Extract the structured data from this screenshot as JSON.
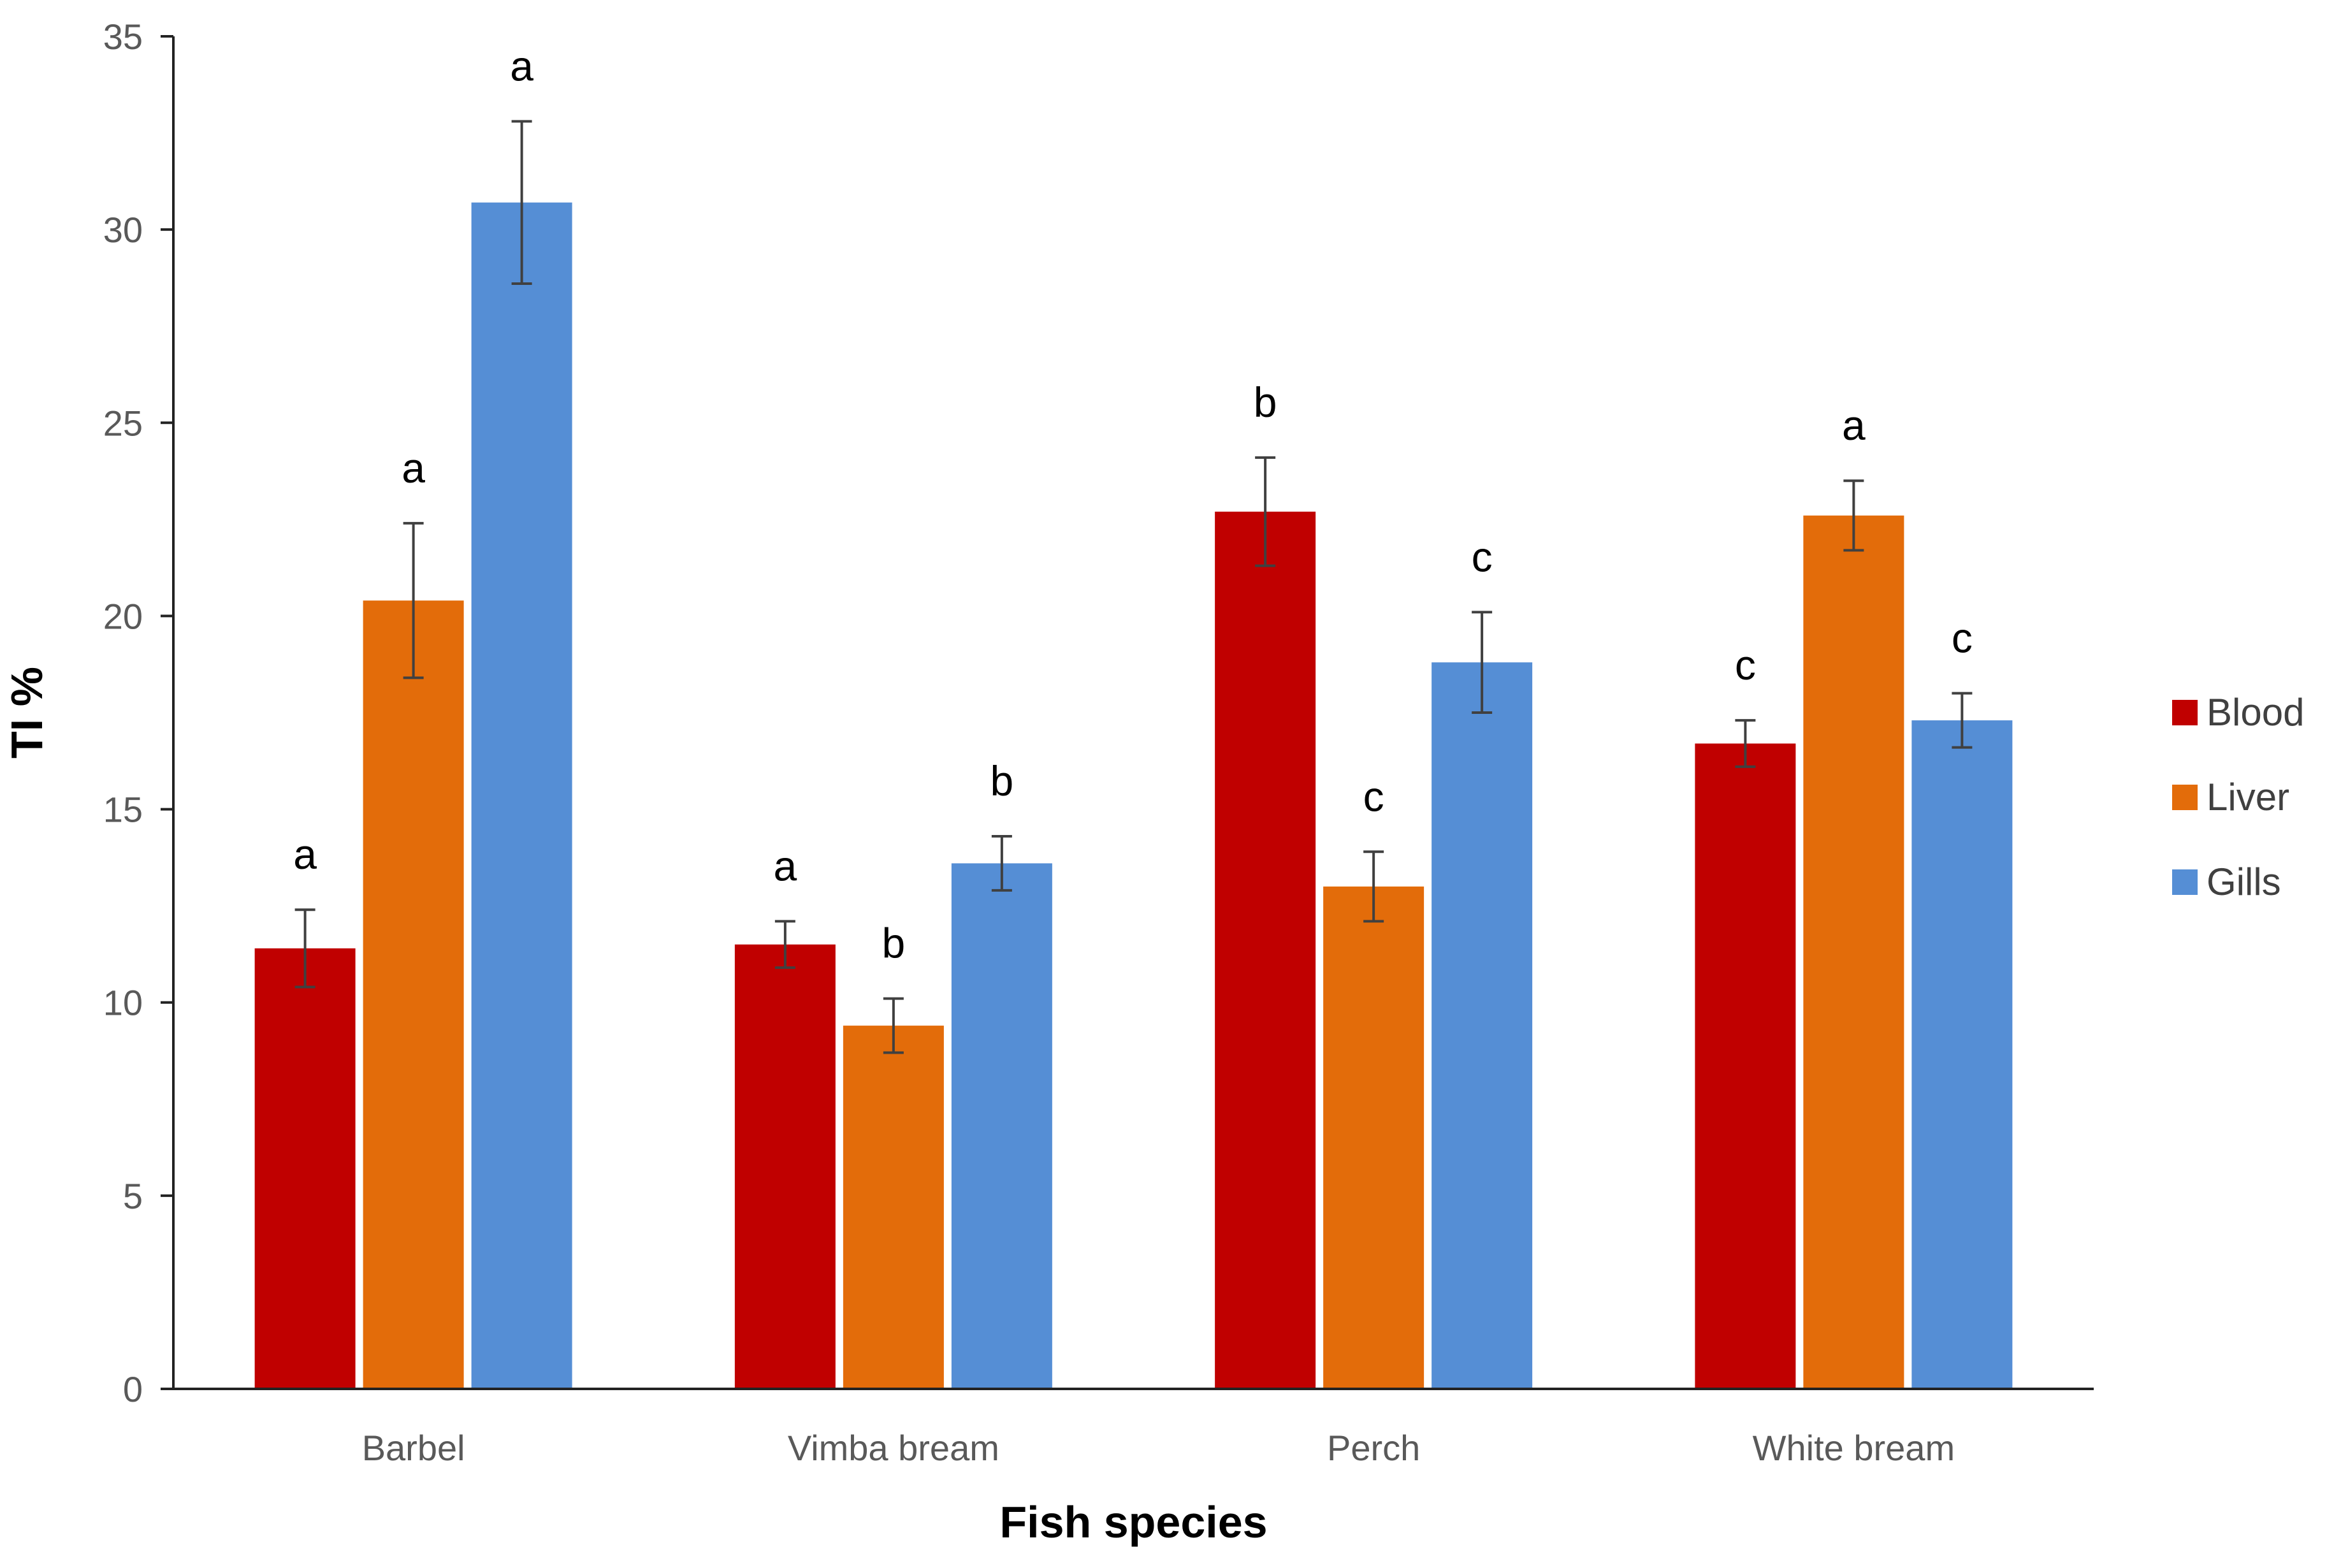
{
  "chart_data": {
    "type": "bar",
    "title": "",
    "xlabel": "Fish species",
    "ylabel": "TI %",
    "ylim": [
      0,
      35
    ],
    "yticks": [
      "0",
      "5",
      "10",
      "15",
      "20",
      "25",
      "30",
      "35"
    ],
    "grid": false,
    "legend_position": "right",
    "categories": [
      "Barbel",
      "Vimba bream",
      "Perch",
      "White bream"
    ],
    "series": [
      {
        "name": "Blood",
        "color": "#C00000",
        "values": [
          11.4,
          11.5,
          22.7,
          16.7
        ],
        "errors": [
          1.0,
          0.6,
          1.4,
          0.6
        ],
        "labels": [
          "a",
          "a",
          "b",
          "c"
        ]
      },
      {
        "name": "Liver",
        "color": "#E36C0A",
        "values": [
          20.4,
          9.4,
          13.0,
          22.6
        ],
        "errors": [
          2.0,
          0.7,
          0.9,
          0.9
        ],
        "labels": [
          "a",
          "b",
          "c",
          "a"
        ]
      },
      {
        "name": "Gills",
        "color": "#558ED5",
        "values": [
          30.7,
          13.6,
          18.8,
          17.3
        ],
        "errors": [
          2.1,
          0.7,
          1.3,
          0.7
        ],
        "labels": [
          "a",
          "b",
          "c",
          "c"
        ]
      }
    ]
  }
}
